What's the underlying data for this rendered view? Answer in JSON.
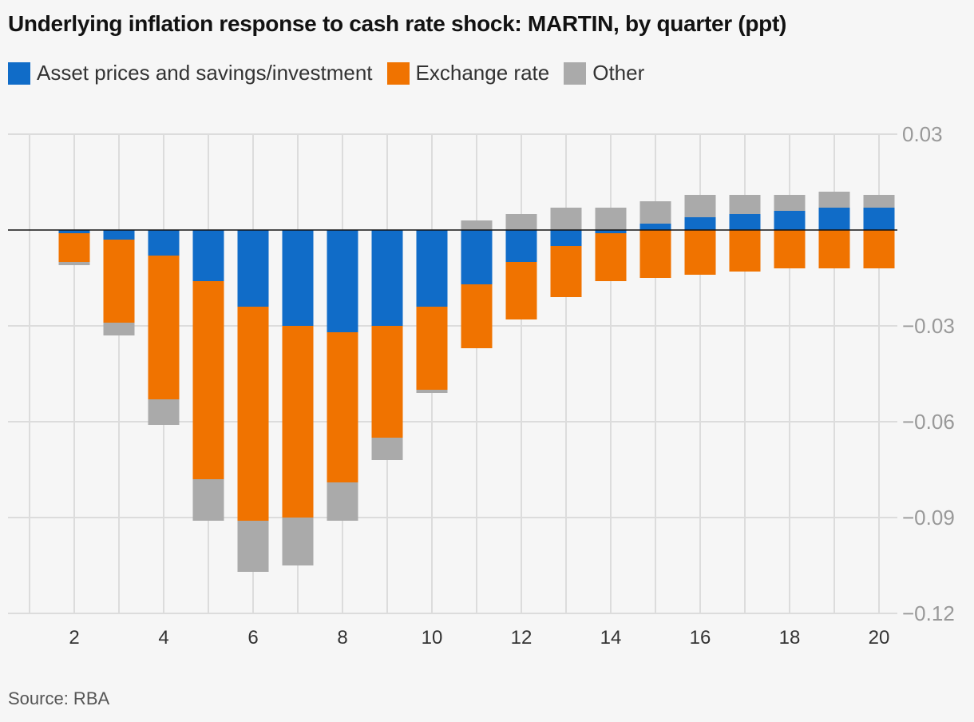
{
  "title": "Underlying inflation response to cash rate shock: MARTIN, by quarter (ppt)",
  "source": "Source: RBA",
  "colors": {
    "asset": "#106cc8",
    "exchange": "#f07300",
    "other": "#aaaaaa"
  },
  "chart_data": {
    "type": "bar",
    "stacked": true,
    "title": "Underlying inflation response to cash rate shock: MARTIN, by quarter (ppt)",
    "x": [
      2,
      3,
      4,
      5,
      6,
      7,
      8,
      9,
      10,
      11,
      12,
      13,
      14,
      15,
      16,
      17,
      18,
      19,
      20
    ],
    "xlim": [
      1,
      20.5
    ],
    "xticks": [
      "2",
      "4",
      "6",
      "8",
      "10",
      "12",
      "14",
      "16",
      "18",
      "20"
    ],
    "ylim": [
      -0.12,
      0.03
    ],
    "yticks": [
      "0.03",
      "−0.03",
      "−0.06",
      "−0.09",
      "−0.12"
    ],
    "grid": true,
    "legend_placement": "top-left",
    "series": [
      {
        "name": "Asset prices and savings/investment",
        "values": [
          -0.001,
          -0.003,
          -0.008,
          -0.016,
          -0.024,
          -0.03,
          -0.032,
          -0.03,
          -0.024,
          -0.017,
          -0.01,
          -0.005,
          -0.001,
          0.002,
          0.004,
          0.005,
          0.006,
          0.007,
          0.007
        ]
      },
      {
        "name": "Exchange rate",
        "values": [
          -0.009,
          -0.026,
          -0.045,
          -0.062,
          -0.067,
          -0.06,
          -0.047,
          -0.035,
          -0.026,
          -0.02,
          -0.018,
          -0.016,
          -0.015,
          -0.015,
          -0.014,
          -0.013,
          -0.012,
          -0.012,
          -0.012
        ]
      },
      {
        "name": "Other",
        "values": [
          -0.001,
          -0.004,
          -0.008,
          -0.013,
          -0.016,
          -0.015,
          -0.012,
          -0.007,
          -0.001,
          0.003,
          0.005,
          0.007,
          0.007,
          0.007,
          0.007,
          0.006,
          0.005,
          0.005,
          0.004
        ]
      }
    ]
  }
}
